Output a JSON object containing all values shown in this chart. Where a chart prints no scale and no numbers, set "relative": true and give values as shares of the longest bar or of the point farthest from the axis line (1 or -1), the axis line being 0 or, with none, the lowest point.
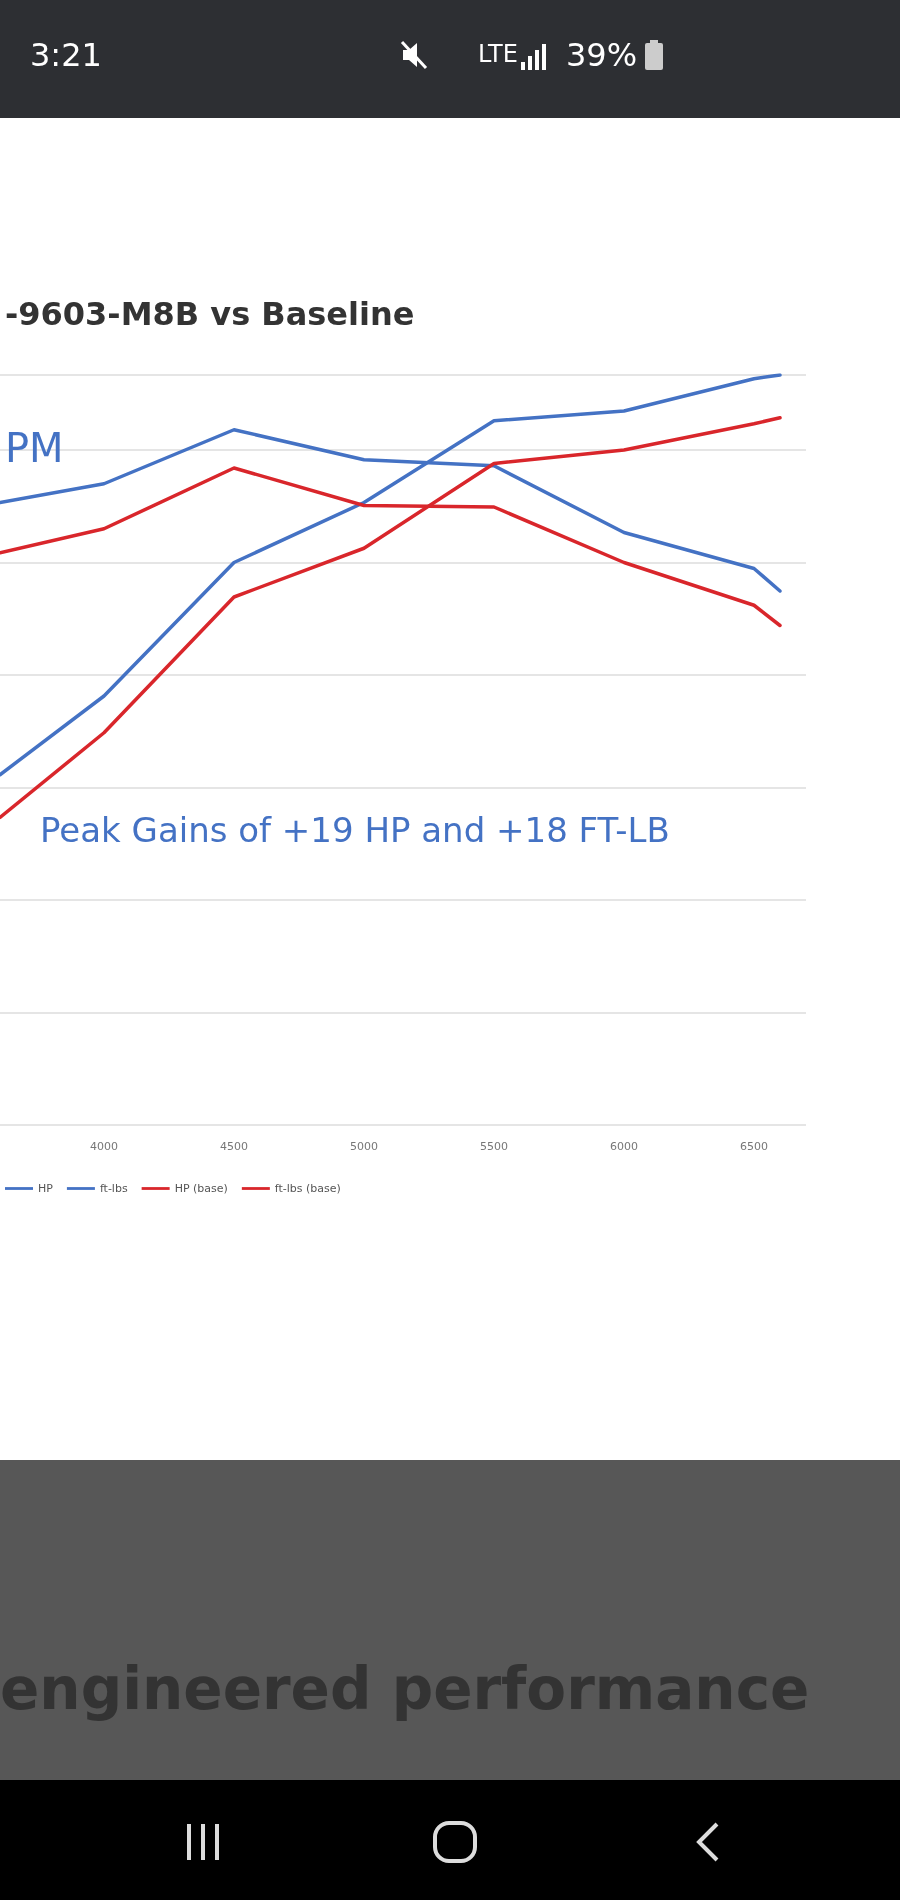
{
  "chart_data": {
    "type": "line",
    "title": "-9603-M8B vs Baseline",
    "subtitle": "PM",
    "relative": true,
    "x": [
      3600,
      4000,
      4500,
      5000,
      5500,
      6000,
      6500,
      6600
    ],
    "xlim": [
      3600,
      6700
    ],
    "xticks": [
      4000,
      4500,
      5000,
      5500,
      6000,
      6500
    ],
    "grid": "y",
    "legend": "bottom",
    "marker": "none",
    "line_style": "solid",
    "series": [
      {
        "name": "HP",
        "color": "#4472c4",
        "values": [
          0.467,
          0.572,
          0.75,
          0.83,
          0.939,
          0.952,
          0.995,
          1
        ]
      },
      {
        "name": "ft-lbs",
        "color": "#4472c4",
        "values": [
          0.83,
          0.855,
          0.927,
          0.887,
          0.879,
          0.79,
          0.742,
          0.712
        ]
      },
      {
        "name": "HP (base)",
        "color": "#d9262b",
        "values": [
          0.41,
          0.523,
          0.704,
          0.769,
          0.882,
          0.9,
          0.935,
          0.943
        ]
      },
      {
        "name": "ft-lbs (base)",
        "color": "#d9262b",
        "values": [
          0.763,
          0.795,
          0.876,
          0.826,
          0.824,
          0.75,
          0.693,
          0.666
        ]
      }
    ],
    "annotations": [
      "Peak Gains of +19 HP and +18 FT-LB",
      "3:21",
      "LTE",
      "39%",
      "engineered performance"
    ]
  }
}
